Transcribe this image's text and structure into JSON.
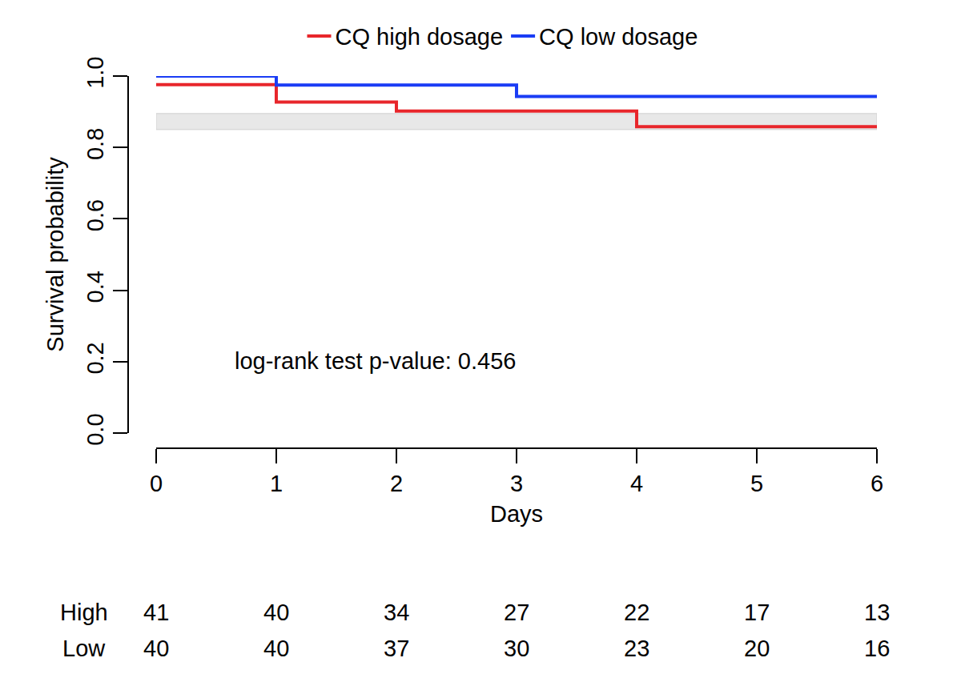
{
  "chart_data": {
    "type": "line",
    "x_label": "Days",
    "y_label": "Survival probability",
    "series": [
      {
        "name": "CQ high dosage",
        "color": "#e8262b",
        "line_style": "step",
        "x": [
          0,
          1,
          2,
          4,
          6
        ],
        "values": [
          0.976,
          0.927,
          0.902,
          0.858,
          0.858
        ]
      },
      {
        "name": "CQ low dosage",
        "color": "#1a3cf5",
        "line_style": "step",
        "x": [
          0,
          1,
          3,
          6
        ],
        "values": [
          1.0,
          0.975,
          0.943,
          0.943
        ]
      }
    ],
    "band": {
      "x": [
        0,
        6
      ],
      "y": [
        0.85,
        0.895
      ]
    },
    "xlim": [
      0,
      6
    ],
    "xticks": [
      0,
      1,
      2,
      3,
      4,
      5,
      6
    ],
    "ylim": [
      0,
      1
    ],
    "yticks": [
      {
        "value": 0,
        "label": "0.0"
      },
      0.2,
      0.4,
      0.6,
      0.8,
      {
        "value": 1,
        "label": "1.0"
      }
    ],
    "grid": false,
    "legend": "top",
    "annotations": [
      "log-rank test p-value: 0.456"
    ],
    "risk_table": [
      {
        "label": "High",
        "values": [
          41,
          40,
          34,
          27,
          22,
          17,
          13
        ]
      },
      {
        "label": "Low",
        "values": [
          40,
          40,
          37,
          30,
          23,
          20,
          16
        ]
      }
    ]
  }
}
